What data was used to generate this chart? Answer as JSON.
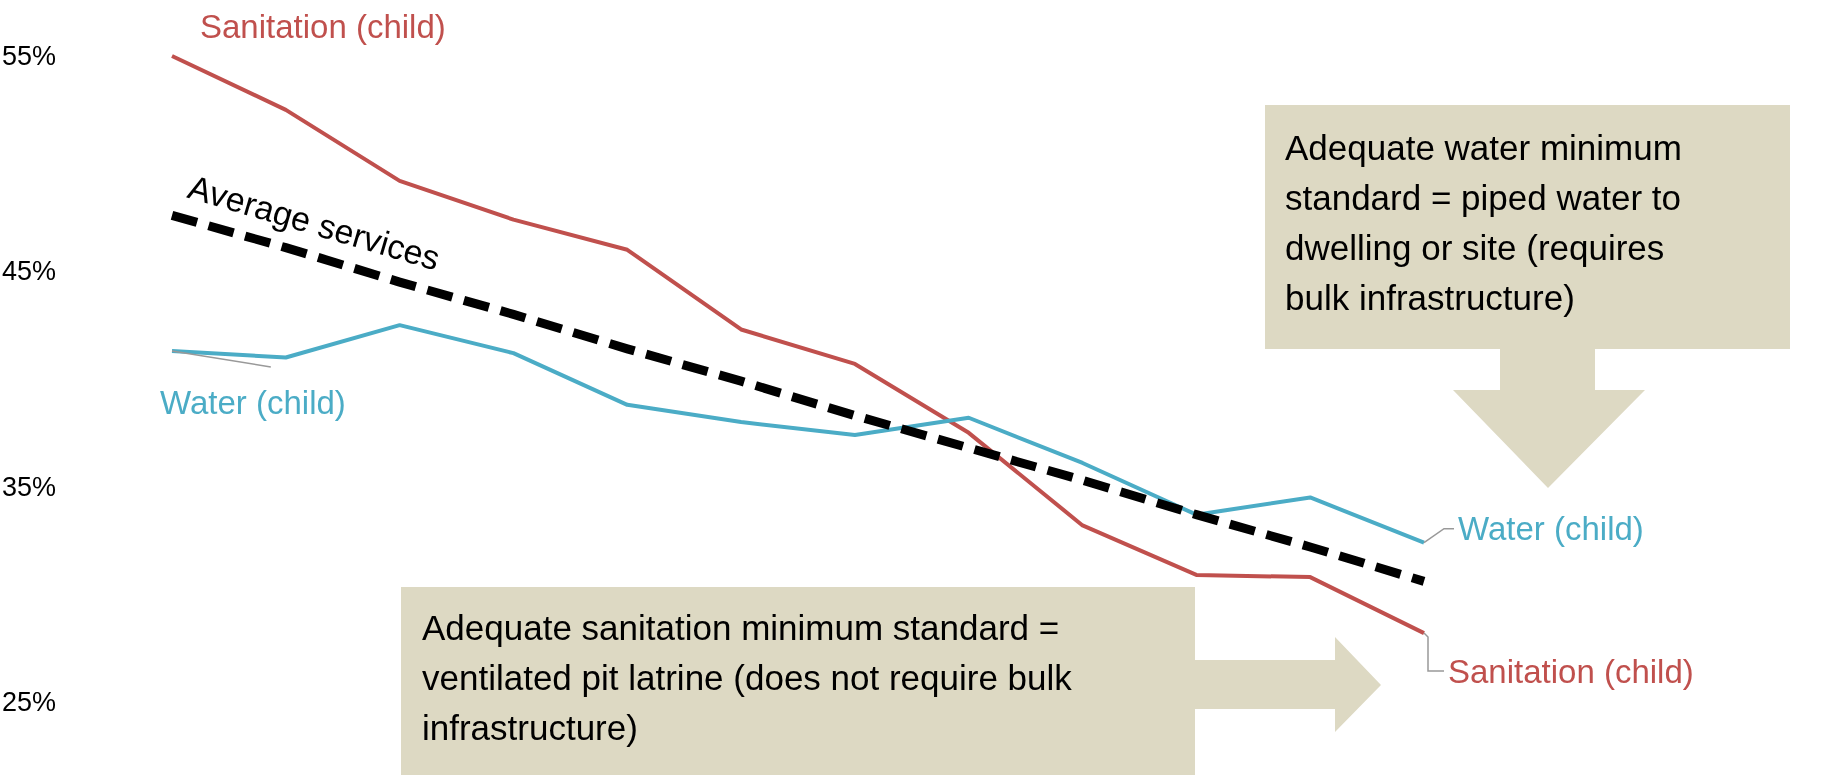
{
  "chart_data": {
    "type": "line",
    "categories": [
      null,
      null,
      null,
      null,
      null,
      null,
      null,
      null,
      null,
      null,
      null,
      null
    ],
    "series": [
      {
        "name": "Sanitation (child)",
        "color": "#c0504d",
        "values": [
          55.0,
          52.5,
          49.2,
          47.4,
          46.0,
          42.3,
          40.7,
          37.5,
          33.2,
          30.9,
          30.8,
          28.2
        ]
      },
      {
        "name": "Water (child)",
        "color": "#4bacc6",
        "values": [
          41.3,
          41.0,
          42.5,
          41.2,
          38.8,
          38.0,
          37.4,
          38.2,
          36.1,
          33.7,
          34.5,
          32.4
        ]
      },
      {
        "name": "Average services",
        "color": "#000000",
        "line_style": "dashed",
        "values": [
          47.6,
          46.1,
          44.5,
          43.0,
          41.4,
          39.9,
          38.3,
          36.8,
          35.3,
          33.7,
          32.2,
          30.6
        ]
      }
    ],
    "ylim": [
      25,
      55
    ],
    "yticks": [
      {
        "value": 25,
        "label": "25%"
      },
      {
        "value": 35,
        "label": "35%"
      },
      {
        "value": 45,
        "label": "45%"
      },
      {
        "value": 55,
        "label": "55%"
      }
    ],
    "tick_labels": "y",
    "grid": false,
    "legend": false,
    "marker": "none",
    "annotations": [
      "Adequate water minimum standard = piped water to dwelling or site (requires bulk infrastructure)",
      "Adequate sanitation minimum standard = ventilated pit latrine (does not require bulk infrastructure)"
    ]
  }
}
